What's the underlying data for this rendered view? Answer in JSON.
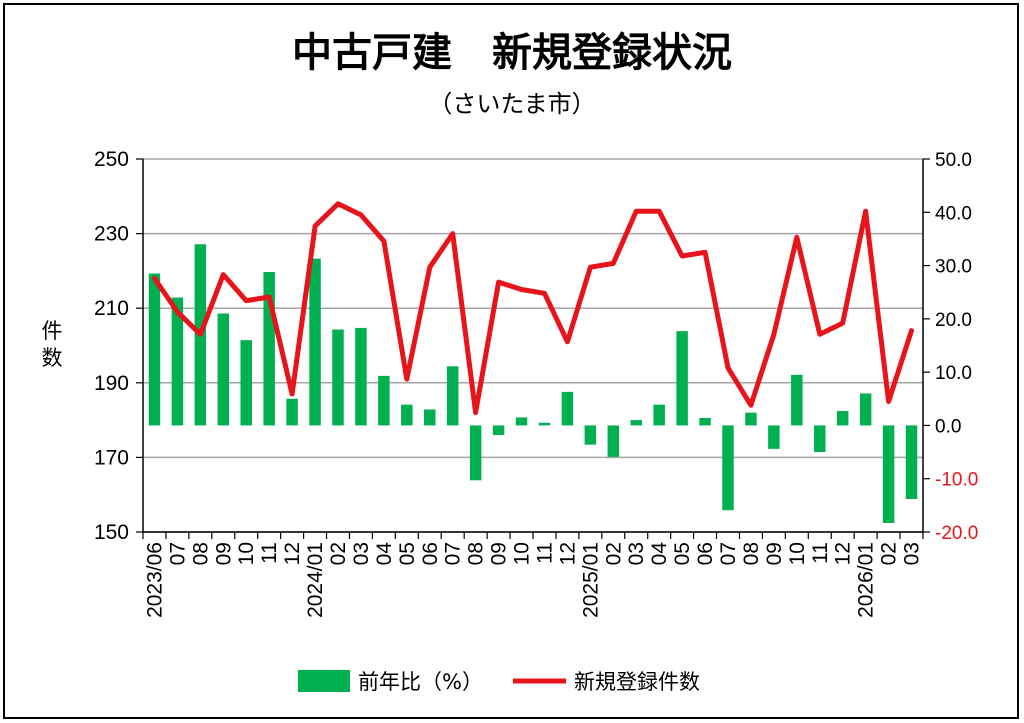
{
  "chart_data": {
    "type": "bar+line",
    "title": "中古戸建　新規登録状況",
    "subtitle": "（さいたま市）",
    "ylabel_left": "件数",
    "categories": [
      "2023/06",
      "07",
      "08",
      "09",
      "10",
      "11",
      "12",
      "2024/01",
      "02",
      "03",
      "04",
      "05",
      "06",
      "07",
      "08",
      "09",
      "10",
      "11",
      "12",
      "2025/01",
      "02",
      "03",
      "04",
      "05",
      "06",
      "07",
      "08",
      "09",
      "10",
      "11",
      "12",
      "2026/01",
      "02",
      "03"
    ],
    "series": [
      {
        "name": "前年比（%）",
        "type": "bar",
        "axis": "right",
        "color": "#00b050",
        "values": [
          28.5,
          24,
          34,
          21,
          16,
          28.8,
          5,
          31.3,
          18,
          18.3,
          9.3,
          3.9,
          3,
          11.1,
          -10.3,
          -1.8,
          1.5,
          0.5,
          6.3,
          -3.6,
          -5.9,
          1,
          3.9,
          17.7,
          1.4,
          -15.9,
          2.4,
          -4.4,
          9.5,
          -5,
          2.7,
          6,
          -18.3,
          -13.8
        ]
      },
      {
        "name": "新規登録件数",
        "type": "line",
        "axis": "left",
        "color": "#e8141c",
        "values": [
          218,
          209,
          203,
          219,
          212,
          213,
          187,
          232,
          238,
          235,
          228,
          191,
          221,
          230,
          182,
          217,
          215,
          214,
          201,
          221,
          222,
          236,
          236,
          224,
          225,
          194,
          184,
          203,
          229,
          203,
          206,
          236,
          185,
          204
        ]
      }
    ],
    "y_left": {
      "ylim": [
        150,
        250
      ],
      "ticks": [
        "150",
        "170",
        "190",
        "210",
        "230",
        "250"
      ]
    },
    "y_right": {
      "ylim": [
        -20,
        50
      ],
      "ticks": [
        "-20.0",
        "-10.0",
        "0.0",
        "10.0",
        "20.0",
        "30.0",
        "40.0",
        "50.0"
      ],
      "negative_color": "#e8141c"
    },
    "grid": true,
    "legend_position": "bottom"
  }
}
